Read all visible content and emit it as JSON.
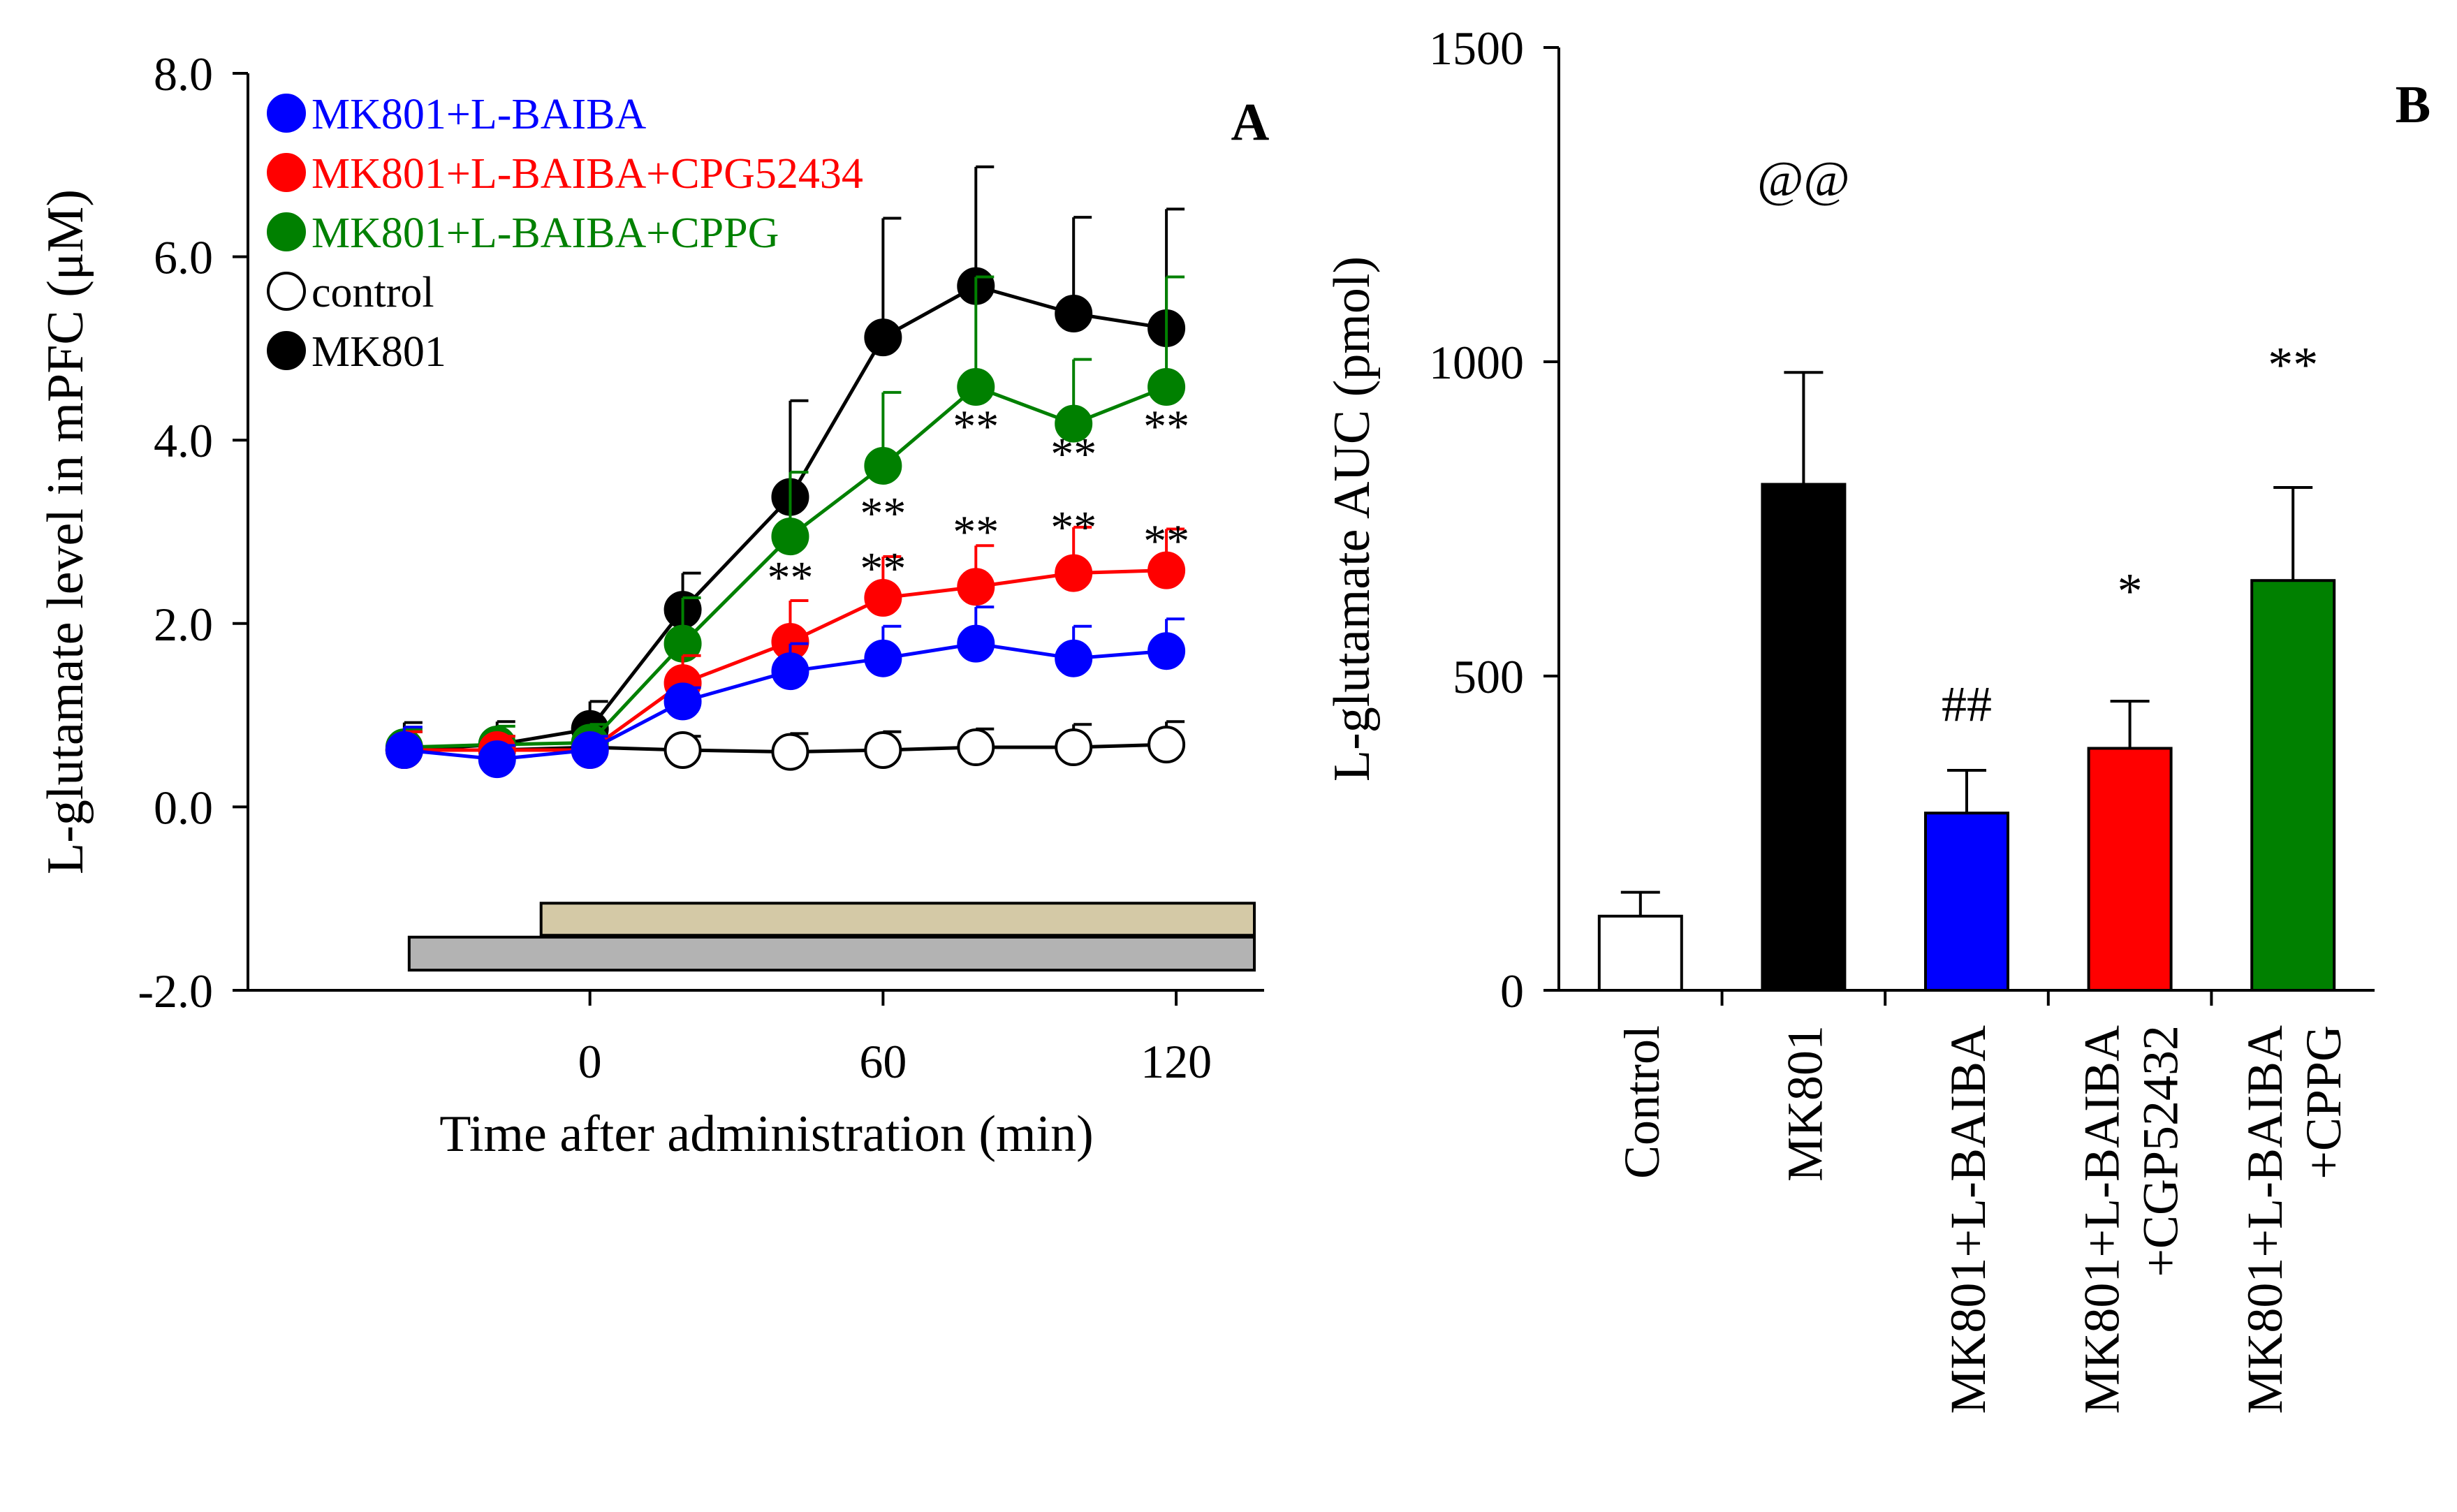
{
  "chart_data": [
    {
      "panel": "A",
      "type": "line",
      "ylabel": "L-glutamate level in mPFC (μM)",
      "xlabel": "Time after administration (min)",
      "ylim": [
        -2.0,
        8.0
      ],
      "yticks": [
        "8.0",
        "6.0",
        "4.0",
        "2.0",
        "0.0",
        "-2.0"
      ],
      "ytick_values": [
        8,
        6,
        4,
        2,
        0,
        -2
      ],
      "xlim": [
        -70,
        138
      ],
      "xticks": [
        "0",
        "60",
        "120"
      ],
      "xtick_values": [
        0,
        60,
        120
      ],
      "x": [
        -38,
        -19,
        0,
        19,
        41,
        60,
        79,
        99,
        118
      ],
      "series": [
        {
          "name": "MK801+L-BAIBA",
          "color": "#0000ff",
          "filled": true,
          "values": [
            0.62,
            0.52,
            0.62,
            1.15,
            1.48,
            1.62,
            1.78,
            1.62,
            1.7
          ],
          "errors": [
            0.25,
            0.15,
            0.15,
            0.15,
            0.3,
            0.35,
            0.4,
            0.35,
            0.35
          ]
        },
        {
          "name": "MK801+L-BAIBA+CPG52434",
          "color": "#ff0000",
          "filled": true,
          "values": [
            0.62,
            0.62,
            0.62,
            1.35,
            1.8,
            2.28,
            2.4,
            2.55,
            2.58
          ],
          "errors": [
            0.2,
            0.15,
            0.15,
            0.3,
            0.45,
            0.45,
            0.45,
            0.5,
            0.45
          ]
        },
        {
          "name": "MK801+L-BAIBA+CPPG",
          "color": "#008000",
          "filled": true,
          "values": [
            0.65,
            0.68,
            0.7,
            1.78,
            2.95,
            3.72,
            4.58,
            4.18,
            4.58
          ],
          "errors": [
            0.2,
            0.2,
            0.2,
            0.5,
            0.7,
            0.8,
            1.2,
            0.7,
            1.2
          ]
        },
        {
          "name": "control",
          "color": "#000000",
          "filled": false,
          "values": [
            0.62,
            0.62,
            0.65,
            0.62,
            0.6,
            0.62,
            0.65,
            0.65,
            0.68
          ],
          "errors": [
            0.2,
            0.15,
            0.15,
            0.15,
            0.2,
            0.2,
            0.2,
            0.25,
            0.25
          ]
        },
        {
          "name": "MK801",
          "color": "#000000",
          "filled": true,
          "values": [
            0.62,
            0.68,
            0.85,
            2.15,
            3.38,
            5.12,
            5.68,
            5.38,
            5.22
          ],
          "errors": [
            0.3,
            0.25,
            0.3,
            0.4,
            1.05,
            1.3,
            1.3,
            1.05,
            1.3
          ]
        }
      ],
      "annotations": [
        {
          "text": "**",
          "x": 41,
          "y": 2.5
        },
        {
          "text": "**",
          "x": 60,
          "y": 2.6
        },
        {
          "text": "**",
          "x": 60,
          "y": 3.2
        },
        {
          "text": "**",
          "x": 79,
          "y": 3.0
        },
        {
          "text": "**",
          "x": 79,
          "y": 4.15
        },
        {
          "text": "**",
          "x": 99,
          "y": 3.05
        },
        {
          "text": "**",
          "x": 99,
          "y": 3.85
        },
        {
          "text": "**",
          "x": 118,
          "y": 2.9
        },
        {
          "text": "**",
          "x": 118,
          "y": 4.15
        }
      ],
      "treatment_bars": [
        {
          "name": "treatment-bar-upper",
          "start": -10,
          "end": 136,
          "color": "#d4c9a6",
          "y_from": -1.4,
          "y_to": -1.05
        },
        {
          "name": "treatment-bar-lower",
          "start": -37,
          "end": 136,
          "color": "#b3b3b3",
          "y_from": -1.78,
          "y_to": -1.42
        }
      ]
    },
    {
      "panel": "B",
      "type": "bar",
      "ylabel": "L-glutamate AUC (pmol)",
      "ylim": [
        0,
        1500
      ],
      "yticks": [
        "1500",
        "1000",
        "500",
        "0"
      ],
      "ytick_values": [
        1500,
        1000,
        500,
        0
      ],
      "categories": [
        "Control",
        "MK801",
        "MK801+L-BAIBA",
        "MK801+L-BAIBA +CGP52432",
        "MK801+L-BAIBA +CPPG"
      ],
      "category_lines": [
        [
          "Control"
        ],
        [
          "MK801"
        ],
        [
          "MK801+L-BAIBA"
        ],
        [
          "MK801+L-BAIBA",
          "+CGP52432"
        ],
        [
          "MK801+L-BAIBA",
          "+CPPG"
        ]
      ],
      "values": [
        118,
        805,
        282,
        385,
        652
      ],
      "errors": [
        38,
        178,
        68,
        75,
        148
      ],
      "colors": [
        "#ffffff",
        "#000000",
        "#0000ff",
        "#ff0000",
        "#008000"
      ],
      "significance": [
        "",
        "@@",
        "##",
        "*",
        "**"
      ],
      "significance_values": [
        0,
        1290,
        455,
        635,
        995
      ]
    }
  ]
}
